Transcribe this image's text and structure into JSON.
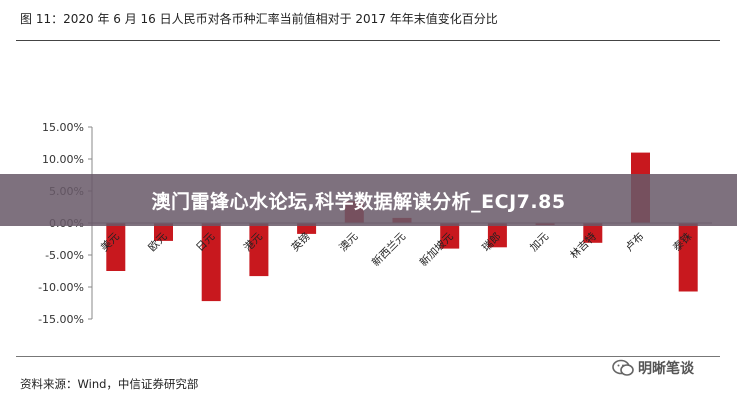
{
  "figure": {
    "title": "图 11：2020 年 6 月 16 日人民币对各币种汇率当前值相对于 2017 年年末值变化百分比",
    "source": "资料来源：Wind，中信证券研究部",
    "watermark_text": "明晰笔谈",
    "banner_text": "澳门雷锋心水论坛,科学数据解读分析_ECJ7.85"
  },
  "colors": {
    "bar": "#c8181e",
    "axis": "#888888",
    "banner_bg": "#695a69"
  },
  "chart_data": {
    "type": "bar",
    "title": "",
    "xlabel": "",
    "ylabel": "",
    "ylim": [
      -0.15,
      0.15
    ],
    "yticks": [
      0.15,
      0.1,
      0.05,
      0.0,
      -0.05,
      -0.1,
      -0.15
    ],
    "ytick_labels": [
      "15.00%",
      "10.00%",
      "5.00%",
      "0.00%",
      "-5.00%",
      "-10.00%",
      "-15.00%"
    ],
    "grid": false,
    "legend": "none",
    "categories": [
      "美元",
      "欧元",
      "日元",
      "港元",
      "英镑",
      "澳元",
      "新西兰元",
      "新加坡元",
      "瑞郎",
      "加元",
      "林吉特",
      "卢布",
      "泰铢"
    ],
    "values": [
      -0.075,
      -0.028,
      -0.122,
      -0.083,
      -0.017,
      0.034,
      0.008,
      -0.04,
      -0.038,
      -0.003,
      -0.031,
      0.11,
      -0.107
    ]
  }
}
